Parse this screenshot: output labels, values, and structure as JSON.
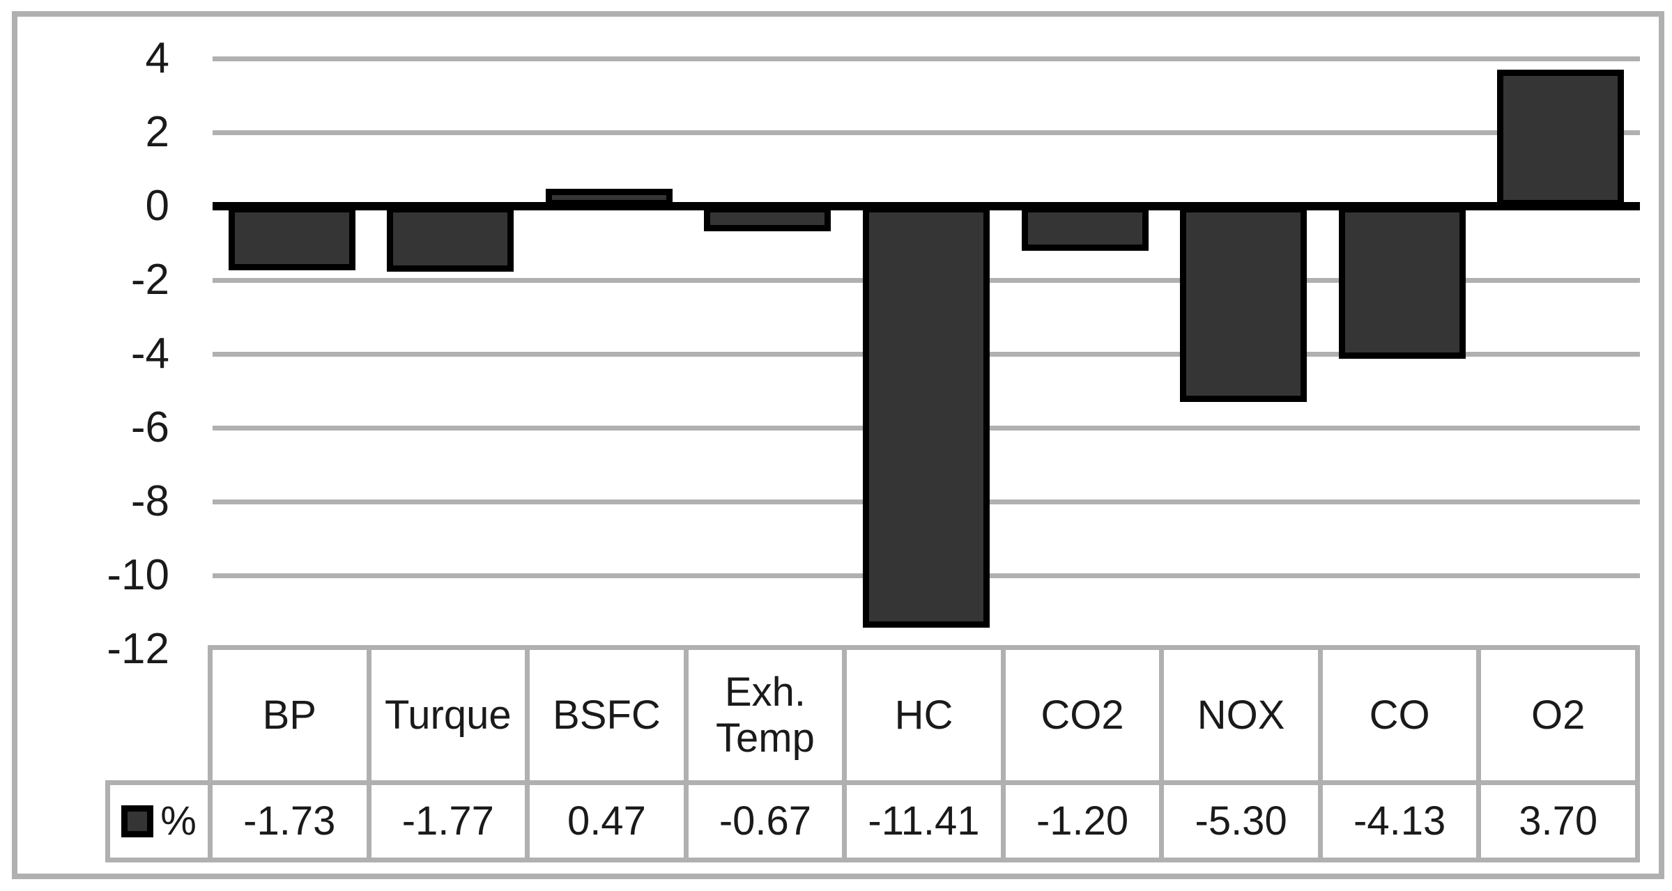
{
  "chart_data": {
    "type": "bar",
    "title": "",
    "xlabel": "",
    "ylabel": "",
    "categories": [
      "BP",
      "Turque",
      "BSFC",
      "Exh.\nTemp",
      "HC",
      "CO2",
      "NOX",
      "CO",
      "O2"
    ],
    "series": [
      {
        "name": "%",
        "values": [
          -1.73,
          -1.77,
          0.47,
          -0.67,
          -11.41,
          -1.2,
          -5.3,
          -4.13,
          3.7
        ],
        "value_labels": [
          "-1.73",
          "-1.77",
          "0.47",
          "-0.67",
          "-11.41",
          "-1.20",
          "-5.30",
          "-4.13",
          "3.70"
        ]
      }
    ],
    "ylim": [
      -12,
      4
    ],
    "yticks": [
      4,
      2,
      0,
      -2,
      -4,
      -6,
      -8,
      -10,
      -12
    ],
    "grid": true,
    "legend_position": "table-left-cell",
    "data_table_shown": true,
    "colors": {
      "bar_fill": "#353535",
      "bar_border": "#000000",
      "gridline": "#b0b0b0",
      "axis_line": "#000000",
      "table_border": "#b0b0b0",
      "frame_border": "#b0b0b0",
      "text": "#1a1a1a",
      "background": "#ffffff"
    }
  }
}
